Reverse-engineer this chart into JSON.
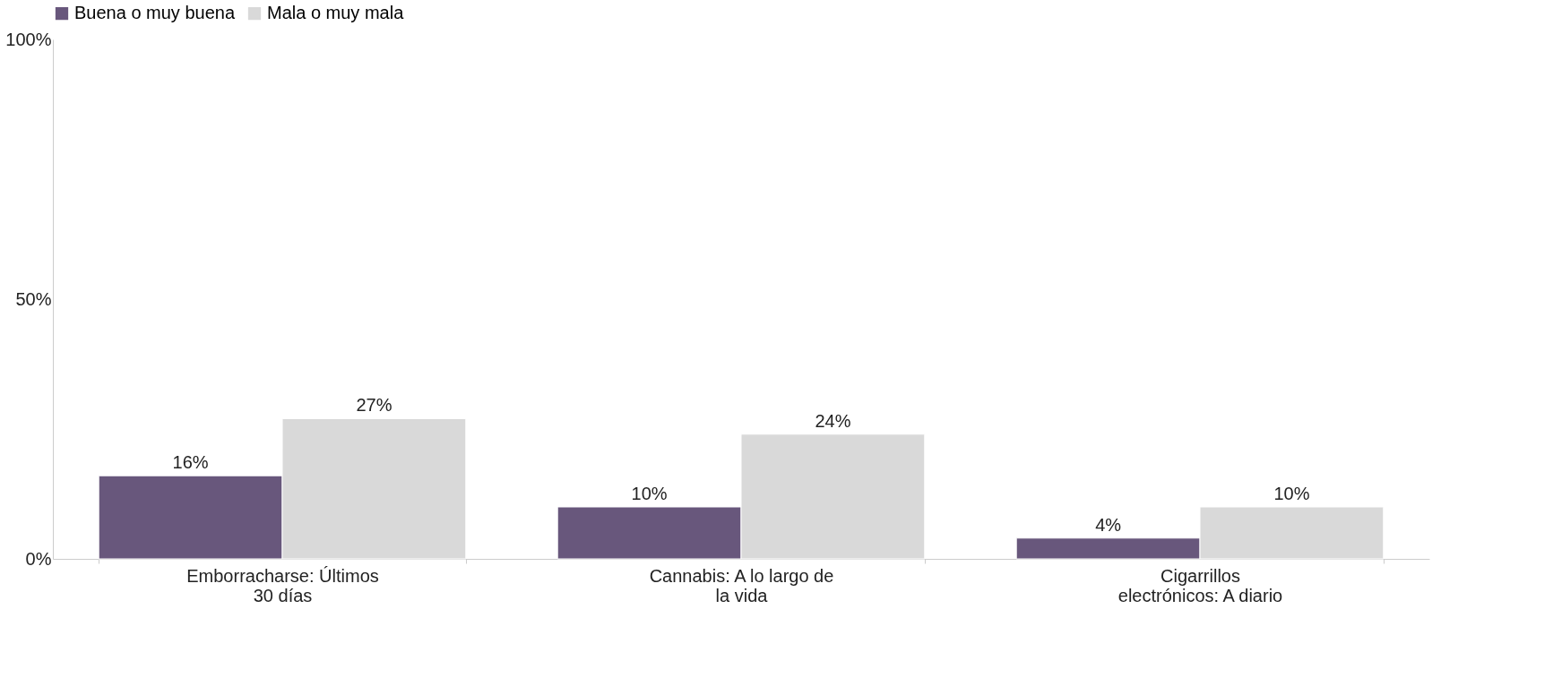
{
  "chart_data": {
    "type": "bar",
    "categories": [
      "Emborracharse: Últimos 30 días",
      "Cannabis: A lo largo de la vida",
      "Cigarrillos electrónicos: A diario"
    ],
    "series": [
      {
        "name": "Buena o muy buena",
        "color": "#68577c",
        "values": [
          16,
          10,
          4
        ],
        "value_labels": [
          "16%",
          "10%",
          "4%"
        ]
      },
      {
        "name": "Mala o muy mala",
        "color": "#d9d9d9",
        "values": [
          27,
          24,
          10
        ],
        "value_labels": [
          "27%",
          "24%",
          "10%"
        ]
      }
    ],
    "ylim": [
      0,
      100
    ],
    "yticks": [
      {
        "value": 0,
        "label": "0%"
      },
      {
        "value": 50,
        "label": "50%"
      },
      {
        "value": 100,
        "label": "100%"
      }
    ],
    "grid": false,
    "legend": "top"
  }
}
